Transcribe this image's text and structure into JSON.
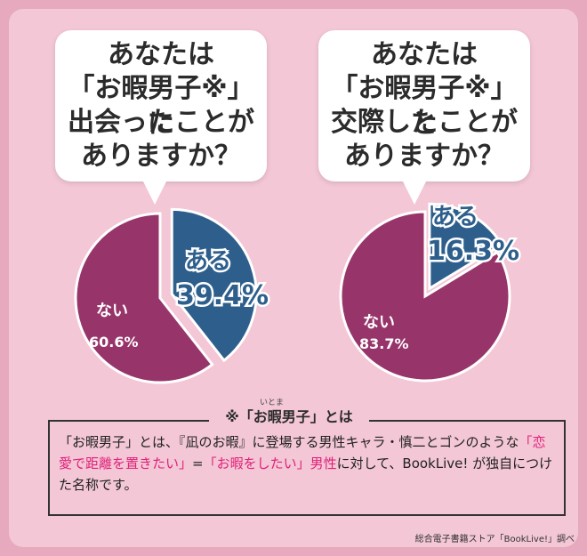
{
  "chart_data": [
    {
      "type": "pie",
      "title": "あなたは「お暇男子※」に出会ったことがありますか？",
      "title_lines": [
        "あなたは",
        "「お暇男子※」に",
        "出会ったことが",
        "ありますか？"
      ],
      "slices": [
        {
          "name": "ある",
          "value": 39.4,
          "label": "39.4%",
          "color": "#2e5f8c"
        },
        {
          "name": "ない",
          "value": 60.6,
          "label": "60.6%",
          "color": "#97346a"
        }
      ]
    },
    {
      "type": "pie",
      "title": "あなたは「お暇男子※」と交際したことがありますか？",
      "title_lines": [
        "あなたは",
        "「お暇男子※」と",
        "交際したことが",
        "ありますか？"
      ],
      "slices": [
        {
          "name": "ある",
          "value": 16.3,
          "label": "16.3%",
          "color": "#2e5f8c"
        },
        {
          "name": "ない",
          "value": 83.7,
          "label": "83.7%",
          "color": "#97346a"
        }
      ]
    }
  ],
  "note": {
    "title": "※「お暇男子」とは",
    "ruby": "いとま",
    "text_a": "「お暇男子」とは、『凪のお暇』に登場する男性キャラ・慎二とゴンのような",
    "highlight1": "「恋愛で距離を置きたい」",
    "eq": "=",
    "highlight2": "「お暇をしたい」男性",
    "text_b": "に対して、BookLive! が独自につけた名称です。"
  },
  "credit": "総合電子書籍ストア「BookLive!」調べ"
}
